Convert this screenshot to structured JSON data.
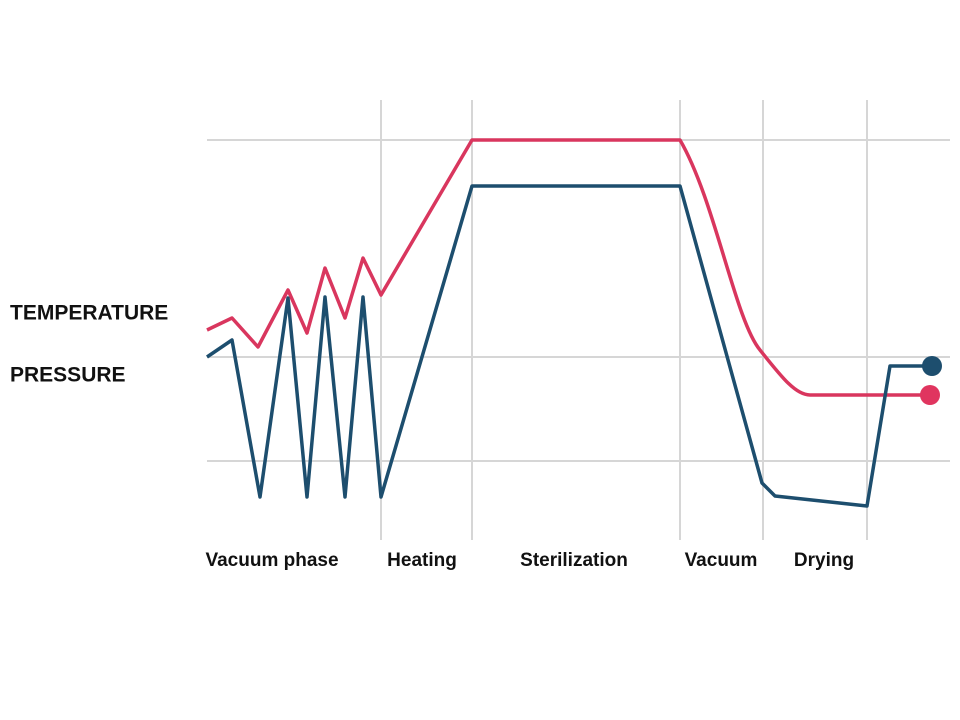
{
  "labels": {
    "temperature": "TEMPERATURE",
    "pressure": "PRESSURE"
  },
  "phases": [
    "Vacuum phase",
    "Heating",
    "Sterilization",
    "Vacuum",
    "Drying"
  ]
}
